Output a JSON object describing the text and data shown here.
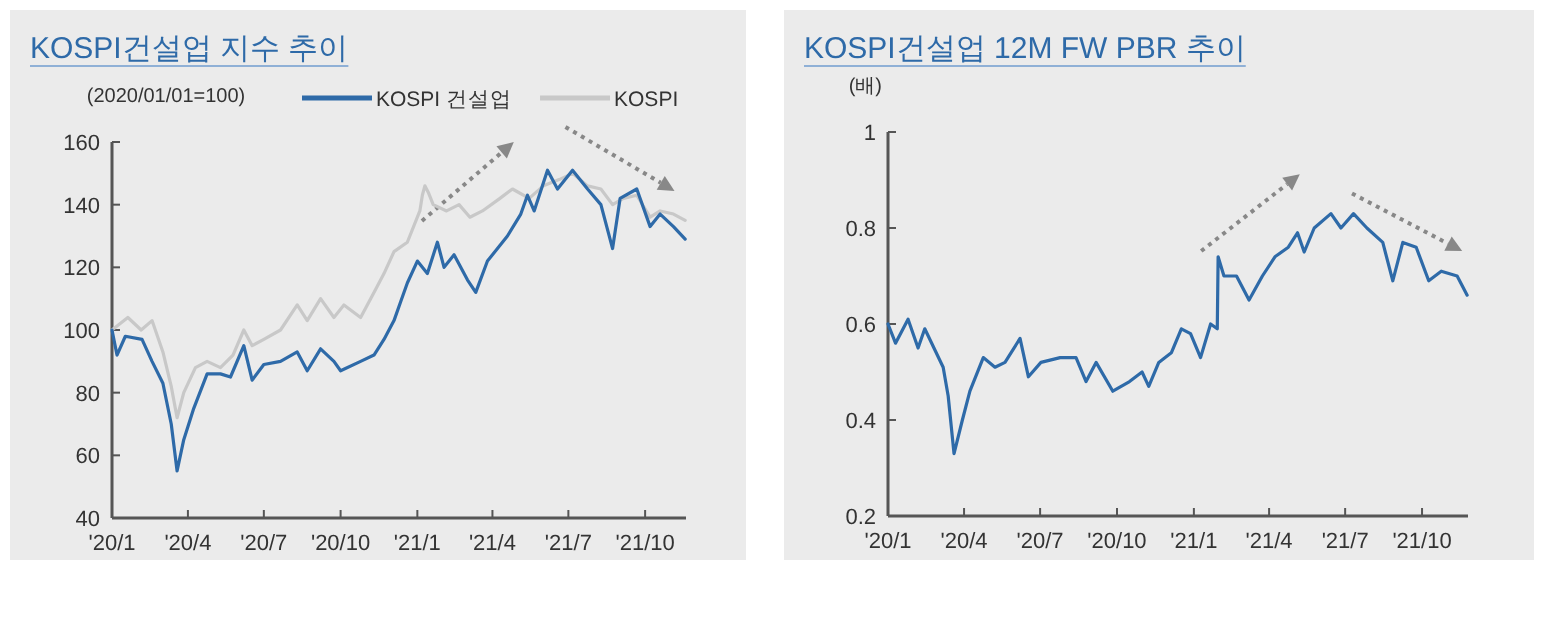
{
  "chart_data": [
    {
      "type": "line",
      "title": "KOSPI건설업 지수 추이",
      "ylabel": "(2020/01/01=100)",
      "xlim": [
        "2020-01-01",
        "2021-11-19"
      ],
      "ylim": [
        40,
        160
      ],
      "yticks": [
        40,
        60,
        80,
        100,
        120,
        140,
        160
      ],
      "xticks": [
        {
          "value": "2020-01-01",
          "label": "'20/1"
        },
        {
          "value": "2020-04-01",
          "label": "'20/4"
        },
        {
          "value": "2020-07-01",
          "label": "'20/7"
        },
        {
          "value": "2020-10-01",
          "label": "'20/10"
        },
        {
          "value": "2021-01-01",
          "label": "'21/1"
        },
        {
          "value": "2021-04-01",
          "label": "'21/4"
        },
        {
          "value": "2021-07-01",
          "label": "'21/7"
        },
        {
          "value": "2021-10-01",
          "label": "'21/10"
        }
      ],
      "grid": false,
      "legend": "top",
      "line_style": "solid",
      "marker": "none",
      "series": [
        {
          "name": "KOSPI",
          "color": "#c8c8c8",
          "x": [
            "2020-01-01",
            "2020-01-20",
            "2020-02-05",
            "2020-02-18",
            "2020-03-02",
            "2020-03-12",
            "2020-03-19",
            "2020-03-27",
            "2020-04-10",
            "2020-04-24",
            "2020-05-10",
            "2020-05-25",
            "2020-06-07",
            "2020-06-17",
            "2020-07-01",
            "2020-07-21",
            "2020-08-10",
            "2020-08-22",
            "2020-09-07",
            "2020-09-23",
            "2020-10-05",
            "2020-10-25",
            "2020-11-10",
            "2020-11-22",
            "2020-12-04",
            "2020-12-20",
            "2021-01-04",
            "2021-01-07",
            "2021-01-10",
            "2021-01-14",
            "2021-01-20",
            "2021-02-05",
            "2021-02-20",
            "2021-03-05",
            "2021-03-20",
            "2021-04-10",
            "2021-04-25",
            "2021-05-15",
            "2021-06-01",
            "2021-06-20",
            "2021-07-06",
            "2021-07-24",
            "2021-08-09",
            "2021-08-23",
            "2021-09-05",
            "2021-09-21",
            "2021-10-07",
            "2021-10-19",
            "2021-11-04",
            "2021-11-18"
          ],
          "values": [
            100,
            104,
            100,
            103,
            93,
            82,
            72,
            80,
            88,
            90,
            88,
            92,
            100,
            95,
            97,
            100,
            108,
            103,
            110,
            104,
            108,
            104,
            112,
            118,
            125,
            128,
            138,
            143,
            146,
            144,
            140,
            138,
            140,
            136,
            138,
            142,
            145,
            142,
            146,
            148,
            150,
            146,
            145,
            140,
            142,
            143,
            136,
            138,
            137,
            135
          ]
        },
        {
          "name": "KOSPI 건설업",
          "color": "#2e6aa8",
          "x": [
            "2020-01-01",
            "2020-01-07",
            "2020-01-17",
            "2020-02-06",
            "2020-02-18",
            "2020-03-02",
            "2020-03-12",
            "2020-03-19",
            "2020-03-27",
            "2020-04-08",
            "2020-04-24",
            "2020-05-10",
            "2020-05-22",
            "2020-06-07",
            "2020-06-17",
            "2020-07-01",
            "2020-07-21",
            "2020-08-10",
            "2020-08-22",
            "2020-09-07",
            "2020-09-23",
            "2020-10-01",
            "2020-10-25",
            "2020-11-10",
            "2020-11-22",
            "2020-12-04",
            "2020-12-12",
            "2020-12-20",
            "2021-01-01",
            "2021-01-13",
            "2021-01-25",
            "2021-02-02",
            "2021-02-14",
            "2021-03-02",
            "2021-03-12",
            "2021-03-26",
            "2021-04-19",
            "2021-05-05",
            "2021-05-13",
            "2021-05-21",
            "2021-06-06",
            "2021-06-18",
            "2021-07-06",
            "2021-07-24",
            "2021-08-09",
            "2021-08-23",
            "2021-09-01",
            "2021-09-21",
            "2021-10-07",
            "2021-10-19",
            "2021-11-04",
            "2021-11-18"
          ],
          "values": [
            100,
            92,
            98,
            97,
            90,
            83,
            70,
            55,
            65,
            75,
            86,
            86,
            85,
            95,
            84,
            89,
            90,
            93,
            87,
            94,
            90,
            87,
            90,
            92,
            97,
            103,
            109,
            115,
            122,
            118,
            128,
            120,
            124,
            116,
            112,
            122,
            130,
            137,
            143,
            138,
            151,
            145,
            151,
            145,
            140,
            126,
            142,
            145,
            133,
            137,
            133,
            129
          ]
        }
      ]
    },
    {
      "type": "line",
      "title": "KOSPI건설업 12M FW PBR 추이",
      "ylabel": "(배)",
      "xlim": [
        "2020-01-01",
        "2021-11-25"
      ],
      "ylim": [
        0.2,
        1
      ],
      "yticks": [
        0.2,
        0.4,
        0.6,
        0.8,
        1
      ],
      "xticks": [
        {
          "value": "2020-01-01",
          "label": "'20/1"
        },
        {
          "value": "2020-04-01",
          "label": "'20/4"
        },
        {
          "value": "2020-07-01",
          "label": "'20/7"
        },
        {
          "value": "2020-10-01",
          "label": "'20/10"
        },
        {
          "value": "2021-01-01",
          "label": "'21/1"
        },
        {
          "value": "2021-04-01",
          "label": "'21/4"
        },
        {
          "value": "2021-07-01",
          "label": "'21/7"
        },
        {
          "value": "2021-10-01",
          "label": "'21/10"
        }
      ],
      "grid": false,
      "legend": false,
      "line_style": "solid",
      "marker": "none",
      "series": [
        {
          "color": "#2e6aa8",
          "x": [
            "2020-01-01",
            "2020-01-10",
            "2020-01-25",
            "2020-02-06",
            "2020-02-14",
            "2020-02-25",
            "2020-03-07",
            "2020-03-13",
            "2020-03-20",
            "2020-03-30",
            "2020-04-08",
            "2020-04-24",
            "2020-05-08",
            "2020-05-20",
            "2020-06-07",
            "2020-06-17",
            "2020-07-02",
            "2020-07-25",
            "2020-08-13",
            "2020-08-25",
            "2020-09-06",
            "2020-09-26",
            "2020-10-16",
            "2020-10-31",
            "2020-11-08",
            "2020-11-20",
            "2020-12-05",
            "2020-12-17",
            "2020-12-28",
            "2021-01-09",
            "2021-01-21",
            "2021-01-29",
            "2021-01-30",
            "2021-02-06",
            "2021-02-21",
            "2021-03-08",
            "2021-03-24",
            "2021-04-08",
            "2021-04-24",
            "2021-05-05",
            "2021-05-13",
            "2021-05-25",
            "2021-06-14",
            "2021-06-26",
            "2021-07-11",
            "2021-07-27",
            "2021-08-15",
            "2021-08-27",
            "2021-09-08",
            "2021-09-24",
            "2021-10-09",
            "2021-10-24",
            "2021-11-12",
            "2021-11-24"
          ],
          "values": [
            0.6,
            0.56,
            0.61,
            0.55,
            0.59,
            0.55,
            0.51,
            0.45,
            0.33,
            0.4,
            0.46,
            0.53,
            0.51,
            0.52,
            0.57,
            0.49,
            0.52,
            0.53,
            0.53,
            0.48,
            0.52,
            0.46,
            0.48,
            0.5,
            0.47,
            0.52,
            0.54,
            0.59,
            0.58,
            0.53,
            0.6,
            0.59,
            0.74,
            0.7,
            0.7,
            0.65,
            0.7,
            0.74,
            0.76,
            0.79,
            0.75,
            0.8,
            0.83,
            0.8,
            0.83,
            0.8,
            0.77,
            0.69,
            0.77,
            0.76,
            0.69,
            0.71,
            0.7,
            0.66
          ]
        }
      ]
    }
  ]
}
